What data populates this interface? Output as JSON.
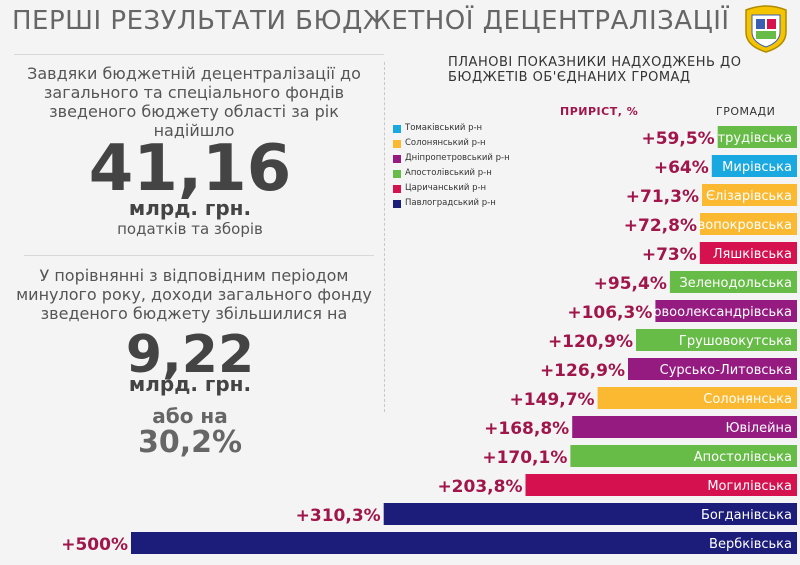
{
  "page": {
    "title": "ПЕРШІ РЕЗУЛЬТАТИ БЮДЖЕТНОЇ ДЕЦЕНТРАЛІЗАЦІЇ",
    "emblem_icon": "oblast-coat-of-arms-icon"
  },
  "left": {
    "lead_text": "Завдяки бюджетній децентралізації до загального та спеціального фондів зведеного бюджету області за рік надійшло",
    "main_value": "41,16",
    "main_unit": "млрд. грн.",
    "main_sub": "податків та зборів",
    "compare_text": "У порівнянні з відповідним періодом минулого року, доходи загального фонду зведеного бюджету збільшилися на",
    "second_value": "9,22",
    "second_unit": "млрд. грн.",
    "or_on": "або на",
    "percent": "30,2%"
  },
  "legend": [
    {
      "label": "Томаківський р-н",
      "color": "#1aa8e0"
    },
    {
      "label": "Солонянський р-н",
      "color": "#fbb931"
    },
    {
      "label": "Дніпропетровський р-н",
      "color": "#951b81"
    },
    {
      "label": "Апостолівський р-н",
      "color": "#66bc46"
    },
    {
      "label": "Царичанський р-н",
      "color": "#d5114f"
    },
    {
      "label": "Павлоградський р-н",
      "color": "#1c1c7a"
    }
  ],
  "chart_data": {
    "type": "bar",
    "title": "ПЛАНОВІ ПОКАЗНИКИ НАДХОДЖЕНЬ ДО БЮДЖЕТІВ ОБ'ЄДНАНИХ ГРОМАД",
    "growth_header": "ПРИРІСТ, %",
    "hromady_header": "ГРОМАДИ",
    "orientation": "horizontal",
    "xlim": [
      0,
      500
    ],
    "categories": [
      "Нивотрудівська",
      "Мирівська",
      "Єлізарівська",
      "Новопокровська",
      "Ляшківська",
      "Зеленодольська",
      "Новоолександрівська",
      "Грушовокутська",
      "Сурсько-Литовська",
      "Солонянська",
      "Ювілейна",
      "Апостолівська",
      "Могилівська",
      "Богданівська",
      "Вербківська"
    ],
    "values": [
      59.5,
      64,
      71.3,
      72.8,
      73,
      95.4,
      106.3,
      120.9,
      126.9,
      149.7,
      168.8,
      170.1,
      203.8,
      310.3,
      500
    ],
    "value_labels": [
      "+59,5%",
      "+64%",
      "+71,3%",
      "+72,8%",
      "+73%",
      "+95,4%",
      "+106,3%",
      "+120,9%",
      "+126,9%",
      "+149,7%",
      "+168,8%",
      "+170,1%",
      "+203,8%",
      "+310,3%",
      "+500%"
    ],
    "district": [
      "Апостолівський р-н",
      "Томаківський р-н",
      "Солонянський р-н",
      "Солонянський р-н",
      "Царичанський р-н",
      "Апостолівський р-н",
      "Дніпропетровський р-н",
      "Апостолівський р-н",
      "Дніпропетровський р-н",
      "Солонянський р-н",
      "Дніпропетровський р-н",
      "Апостолівський р-н",
      "Царичанський р-н",
      "Павлоградський р-н",
      "Павлоградський р-н"
    ],
    "colors": [
      "#66bc46",
      "#1aa8e0",
      "#fbb931",
      "#fbb931",
      "#d5114f",
      "#66bc46",
      "#951b81",
      "#66bc46",
      "#951b81",
      "#fbb931",
      "#951b81",
      "#66bc46",
      "#d5114f",
      "#1c1c7a",
      "#1c1c7a"
    ],
    "value_label_color": "#a0154a"
  }
}
